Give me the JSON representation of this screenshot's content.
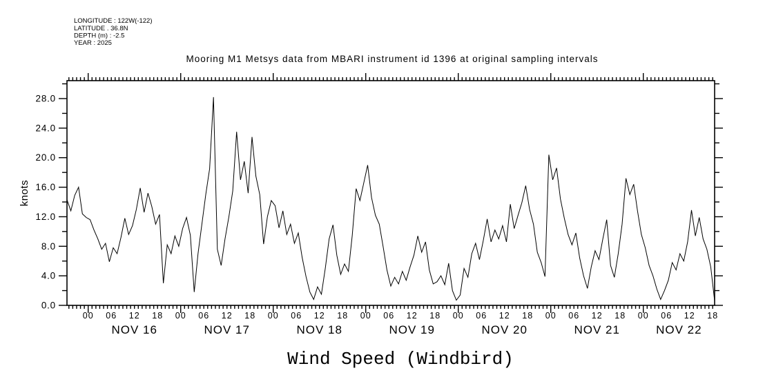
{
  "header": {
    "lines": [
      "LONGITUDE : 122W(-122)",
      "LATITUDE . 36.8N",
      "DEPTH (m) : -2.5",
      "YEAR : 2025"
    ]
  },
  "title": "Mooring M1 Metsys data from MBARI instrument id 1396 at original sampling intervals",
  "chart_data": {
    "type": "line",
    "title": "Mooring M1 Metsys data from MBARI instrument id 1396 at original sampling intervals",
    "xlabel": "Wind Speed (Windbird)",
    "ylabel": "knots",
    "line_color": "#000000",
    "background_color": "#ffffff",
    "grid": false,
    "legend": "none",
    "x_axis": {
      "unit": "hours from NOV 16 00:00",
      "range_hours": [
        -5.5,
        162.5
      ],
      "minor_tick_interval_hours": 1,
      "labeled_hour_interval": 6,
      "hour_label_values": [
        "00",
        "06",
        "12",
        "18"
      ],
      "day_labels": [
        "NOV 16",
        "NOV 17",
        "NOV 18",
        "NOV 19",
        "NOV 20",
        "NOV 21",
        "NOV 22"
      ]
    },
    "y_axis": {
      "range": [
        0,
        30.43
      ],
      "major_tick_step": 4,
      "minor_tick_step": 2,
      "tick_labels": [
        "0.0",
        "4.0",
        "8.0",
        "12.0",
        "16.0",
        "20.0",
        "24.0",
        "28.0"
      ]
    },
    "series": [
      {
        "name": "wind_speed_knots",
        "t_start_hours_from_nov16": -5.5,
        "t_step_hours": 1,
        "values": [
          14.3,
          12.8,
          14.9,
          16.0,
          12.4,
          11.9,
          11.6,
          10.2,
          9.0,
          7.6,
          8.4,
          5.9,
          7.8,
          7.0,
          9.2,
          11.8,
          9.6,
          10.8,
          13.0,
          15.9,
          12.6,
          15.2,
          13.4,
          11.0,
          12.3,
          3.0,
          8.2,
          7.0,
          9.4,
          8.0,
          10.4,
          11.9,
          9.5,
          1.8,
          7.0,
          11.0,
          15.0,
          18.5,
          28.2,
          7.6,
          5.4,
          9.0,
          12.0,
          15.5,
          23.5,
          17.0,
          19.5,
          15.2,
          22.8,
          17.5,
          15.0,
          8.3,
          12.0,
          14.2,
          13.5,
          10.5,
          12.8,
          9.6,
          11.0,
          8.4,
          9.8,
          6.5,
          3.9,
          1.8,
          0.8,
          2.5,
          1.5,
          5.0,
          9.0,
          10.9,
          6.8,
          4.2,
          5.6,
          4.6,
          9.5,
          15.8,
          14.2,
          16.6,
          19.0,
          14.6,
          12.2,
          11.0,
          8.0,
          4.8,
          2.6,
          3.8,
          2.9,
          4.6,
          3.4,
          5.2,
          6.8,
          9.4,
          7.2,
          8.6,
          4.8,
          2.9,
          3.2,
          4.0,
          2.8,
          5.7,
          2.0,
          0.7,
          1.4,
          5.0,
          3.8,
          7.0,
          8.4,
          6.2,
          8.8,
          11.7,
          8.6,
          10.2,
          9.0,
          10.8,
          8.6,
          13.7,
          10.4,
          12.2,
          13.9,
          16.2,
          13.0,
          11.0,
          7.2,
          5.8,
          3.9,
          20.4,
          17.0,
          18.6,
          14.4,
          11.8,
          9.6,
          8.2,
          9.8,
          6.4,
          4.0,
          2.3,
          5.2,
          7.4,
          6.2,
          9.0,
          11.6,
          5.4,
          3.8,
          7.0,
          11.0,
          17.2,
          15.0,
          16.4,
          12.8,
          9.6,
          7.8,
          5.4,
          4.0,
          2.2,
          0.8,
          2.0,
          3.4,
          5.8,
          4.8,
          7.0,
          6.0,
          8.6,
          12.9,
          9.4,
          11.9,
          9.0,
          7.6,
          5.2,
          0.6
        ]
      }
    ]
  }
}
